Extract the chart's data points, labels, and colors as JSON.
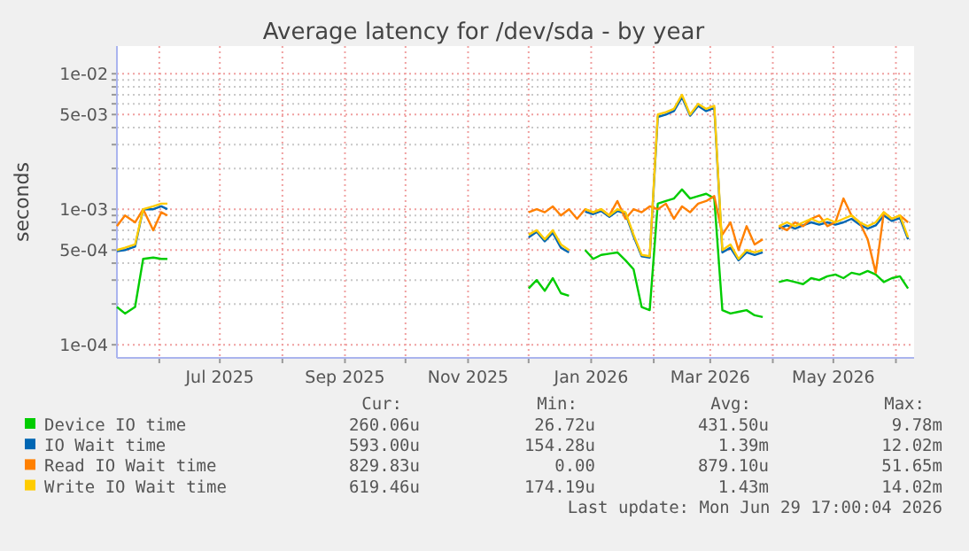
{
  "chart_data": {
    "type": "line",
    "title": "Average latency for /dev/sda - by year",
    "ylabel": "seconds",
    "log": "y",
    "grid": true,
    "legend": "bottom",
    "marker": "none",
    "line_style": "solid",
    "xlim": [
      "2025-05-11",
      "2026-06-10"
    ],
    "xticks": [
      {
        "value": "2025-06-01",
        "label": null
      },
      {
        "value": "2025-07-01",
        "label": "Jul 2025"
      },
      {
        "value": "2025-08-01",
        "label": null
      },
      {
        "value": "2025-09-01",
        "label": "Sep 2025"
      },
      {
        "value": "2025-10-01",
        "label": null
      },
      {
        "value": "2025-11-01",
        "label": "Nov 2025"
      },
      {
        "value": "2025-12-01",
        "label": null
      },
      {
        "value": "2026-01-01",
        "label": "Jan 2026"
      },
      {
        "value": "2026-02-01",
        "label": null
      },
      {
        "value": "2026-03-01",
        "label": "Mar 2026"
      },
      {
        "value": "2026-04-01",
        "label": null
      },
      {
        "value": "2026-05-01",
        "label": "May 2026"
      },
      {
        "value": "2026-06-01",
        "label": null
      }
    ],
    "ylim": [
      8e-05,
      0.016
    ],
    "yticks": [
      {
        "value": 0.0001,
        "label": "1e-04"
      },
      {
        "value": 0.0002,
        "label": null
      },
      {
        "value": 0.0003,
        "label": null
      },
      {
        "value": 0.0004,
        "label": null
      },
      {
        "value": 0.0005,
        "label": "5e-04"
      },
      {
        "value": 0.0006,
        "label": null
      },
      {
        "value": 0.0007,
        "label": null
      },
      {
        "value": 0.0008,
        "label": null
      },
      {
        "value": 0.0009,
        "label": null
      },
      {
        "value": 0.001,
        "label": "1e-03"
      },
      {
        "value": 0.002,
        "label": null
      },
      {
        "value": 0.003,
        "label": null
      },
      {
        "value": 0.004,
        "label": null
      },
      {
        "value": 0.005,
        "label": "5e-03"
      },
      {
        "value": 0.006,
        "label": null
      },
      {
        "value": 0.007,
        "label": null
      },
      {
        "value": 0.008,
        "label": null
      },
      {
        "value": 0.009,
        "label": null
      },
      {
        "value": 0.01,
        "label": "1e-02"
      }
    ],
    "x": [
      "2025-05-11",
      "2025-05-15",
      "2025-05-20",
      "2025-05-24",
      "2025-05-29",
      "2025-06-02",
      "2025-06-05",
      "2025-06-09",
      "2025-12-01",
      "2025-12-05",
      "2025-12-09",
      "2025-12-13",
      "2025-12-17",
      "2025-12-21",
      "2025-12-25",
      "2025-12-29",
      "2026-01-02",
      "2026-01-06",
      "2026-01-10",
      "2026-01-14",
      "2026-01-18",
      "2026-01-22",
      "2026-01-26",
      "2026-01-30",
      "2026-02-03",
      "2026-02-07",
      "2026-02-11",
      "2026-02-15",
      "2026-02-19",
      "2026-02-23",
      "2026-02-27",
      "2026-03-03",
      "2026-03-07",
      "2026-03-11",
      "2026-03-15",
      "2026-03-19",
      "2026-03-23",
      "2026-03-27",
      "2026-03-31",
      "2026-04-04",
      "2026-04-08",
      "2026-04-12",
      "2026-04-16",
      "2026-04-20",
      "2026-04-24",
      "2026-04-28",
      "2026-05-02",
      "2026-05-06",
      "2026-05-10",
      "2026-05-14",
      "2026-05-18",
      "2026-05-22",
      "2026-05-26",
      "2026-05-30",
      "2026-06-03",
      "2026-06-07"
    ],
    "series": [
      {
        "name": "Device IO time",
        "color": "#00cc00",
        "values": [
          0.00019,
          0.00017,
          0.00019,
          0.00043,
          0.00044,
          0.00043,
          0.00043,
          null,
          0.00026,
          0.0003,
          0.00025,
          0.00031,
          0.00024,
          0.00023,
          null,
          0.0005,
          0.00043,
          0.00046,
          0.00047,
          0.00048,
          0.00042,
          0.00036,
          0.00019,
          0.00018,
          0.0011,
          0.00115,
          0.0012,
          0.0014,
          0.0012,
          0.00125,
          0.0013,
          0.0012,
          0.00018,
          0.00017,
          0.000175,
          0.00018,
          0.000165,
          0.00016,
          null,
          0.00029,
          0.0003,
          0.00029,
          0.00028,
          0.00031,
          0.0003,
          0.00032,
          0.00033,
          0.00031,
          0.00034,
          0.00033,
          0.00035,
          0.00033,
          0.00029,
          0.00031,
          0.00032,
          0.00026
        ]
      },
      {
        "name": "IO Wait time",
        "color": "#0066b3",
        "values": [
          0.00049,
          0.0005,
          0.00053,
          0.001,
          0.001,
          0.00105,
          0.001,
          null,
          0.00062,
          0.00068,
          0.00058,
          0.00067,
          0.00052,
          0.00048,
          null,
          0.00096,
          0.00092,
          0.00097,
          0.00088,
          0.00097,
          0.00093,
          0.00063,
          0.00045,
          0.00044,
          0.0048,
          0.005,
          0.0053,
          0.0067,
          0.0049,
          0.0058,
          0.0053,
          0.0056,
          0.00048,
          0.00052,
          0.00042,
          0.00048,
          0.00046,
          0.00048,
          null,
          0.00072,
          0.00076,
          0.00072,
          0.00076,
          0.0008,
          0.00077,
          0.0008,
          0.00077,
          0.0008,
          0.00085,
          0.00077,
          0.00072,
          0.00076,
          0.0009,
          0.00082,
          0.00086,
          0.0006
        ]
      },
      {
        "name": "Read IO Wait time",
        "color": "#ff8000",
        "values": [
          0.00075,
          0.0009,
          0.0008,
          0.001,
          0.0007,
          0.00095,
          0.0009,
          null,
          0.00095,
          0.001,
          0.00095,
          0.00105,
          0.0009,
          0.001,
          0.00085,
          0.001,
          0.00095,
          0.001,
          0.0009,
          0.00115,
          0.00085,
          0.001,
          0.00095,
          0.00105,
          0.001,
          0.0011,
          0.00085,
          0.00105,
          0.00095,
          0.0011,
          0.00115,
          0.00125,
          0.00065,
          0.0008,
          0.0005,
          0.00075,
          0.00055,
          0.0006,
          null,
          0.00075,
          0.0007,
          0.0008,
          0.00075,
          0.00085,
          0.0009,
          0.00075,
          0.0008,
          0.0012,
          0.0009,
          0.0008,
          0.0006,
          0.00034,
          0.00095,
          0.00085,
          0.0009,
          0.0008
        ]
      },
      {
        "name": "Write IO Wait time",
        "color": "#ffcc00",
        "values": [
          0.0005,
          0.00052,
          0.00055,
          0.001,
          0.00105,
          0.0011,
          0.0011,
          null,
          0.00065,
          0.0007,
          0.0006,
          0.0007,
          0.00055,
          0.0005,
          null,
          0.001,
          0.00095,
          0.001,
          0.0009,
          0.001,
          0.00095,
          0.00065,
          0.00046,
          0.00045,
          0.005,
          0.0052,
          0.0055,
          0.007,
          0.005,
          0.006,
          0.0055,
          0.0058,
          0.0005,
          0.00055,
          0.00043,
          0.0005,
          0.00048,
          0.0005,
          null,
          0.00075,
          0.0008,
          0.00075,
          0.0008,
          0.00085,
          0.0008,
          0.00085,
          0.0008,
          0.00085,
          0.0009,
          0.0008,
          0.00075,
          0.0008,
          0.00095,
          0.00085,
          0.0009,
          0.00062
        ]
      }
    ],
    "annotations": [
      "Cur:",
      "Min:",
      "Avg:",
      "Max:",
      "260.06u",
      "26.72u",
      "431.50u",
      "9.78m",
      "593.00u",
      "154.28u",
      "1.39m",
      "12.02m",
      "829.83u",
      "0.00",
      "879.10u",
      "51.65m",
      "619.46u",
      "174.19u",
      "1.43m",
      "14.02m",
      "Last update: Mon Jun 29 17:00:04 2026"
    ]
  }
}
